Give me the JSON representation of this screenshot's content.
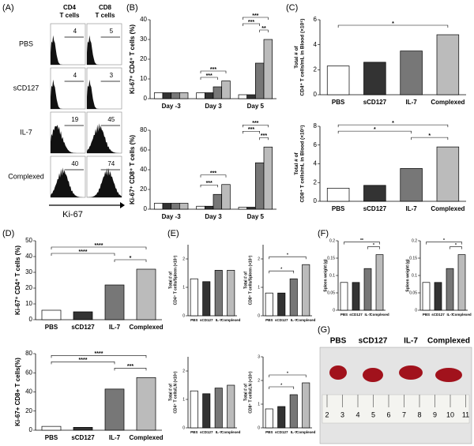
{
  "flow": {
    "panel": "(A)",
    "columns": [
      "CD4",
      "CD8"
    ],
    "column_unit": "T cells",
    "rows": [
      {
        "label": "PBS",
        "values": [
          4,
          5
        ]
      },
      {
        "label": "sCD127",
        "values": [
          4,
          3
        ]
      },
      {
        "label": "IL-7",
        "values": [
          19,
          45
        ]
      },
      {
        "label": "Complexed",
        "values": [
          40,
          74
        ]
      }
    ],
    "xlabel": "Ki-67"
  },
  "chart_data": [
    {
      "type": "bar",
      "panel": "(B)",
      "ylabel": [
        "Ki-67⁺ CD4⁺ T cells (%)"
      ],
      "categories": [
        "Day -3",
        "Day 3",
        "Day 5"
      ],
      "series": [
        {
          "color": "#ffffff",
          "values": [
            3,
            3,
            2
          ]
        },
        {
          "color": "#333333",
          "values": [
            3,
            3,
            2
          ]
        },
        {
          "color": "#777777",
          "values": [
            3,
            6,
            18
          ]
        },
        {
          "color": "#bbbbbb",
          "values": [
            3,
            9,
            30
          ]
        }
      ],
      "ylim": [
        0,
        40
      ],
      "yticks": [
        0,
        10,
        20,
        30,
        40
      ],
      "annotations": [
        {
          "text": "***",
          "category": 1,
          "between": [
            0,
            3
          ]
        },
        {
          "text": "***",
          "category": 1,
          "between": [
            0,
            2
          ]
        },
        {
          "text": "***",
          "category": 2,
          "between": [
            0,
            3
          ]
        },
        {
          "text": "***",
          "category": 2,
          "between": [
            0,
            2
          ]
        },
        {
          "text": "**",
          "category": 2,
          "between": [
            2,
            3
          ]
        }
      ]
    },
    {
      "type": "bar",
      "ylabel": [
        "Ki-67⁺ CD8⁺ T cells (%)"
      ],
      "categories": [
        "Day -3",
        "Day 3",
        "Day 5"
      ],
      "series": [
        {
          "color": "#ffffff",
          "values": [
            6,
            3,
            2
          ]
        },
        {
          "color": "#333333",
          "values": [
            6,
            3,
            2
          ]
        },
        {
          "color": "#777777",
          "values": [
            6,
            15,
            47
          ]
        },
        {
          "color": "#bbbbbb",
          "values": [
            6,
            25,
            63
          ]
        }
      ],
      "ylim": [
        0,
        80
      ],
      "yticks": [
        0,
        20,
        40,
        60,
        80
      ],
      "annotations": [
        {
          "text": "***",
          "category": 1,
          "between": [
            0,
            3
          ]
        },
        {
          "text": "***",
          "category": 1,
          "between": [
            0,
            2
          ]
        },
        {
          "text": "***",
          "category": 2,
          "between": [
            0,
            3
          ]
        },
        {
          "text": "***",
          "category": 2,
          "between": [
            0,
            2
          ]
        },
        {
          "text": "***",
          "category": 2,
          "between": [
            2,
            3
          ]
        }
      ]
    },
    {
      "type": "bar",
      "panel": "(C)",
      "ylabel": [
        "Total # of",
        "CD4⁺ T cells/mL in Blood (×10⁵)"
      ],
      "categories": [
        "PBS",
        "sCD127",
        "IL-7",
        "Complexed"
      ],
      "values": [
        2.3,
        2.6,
        3.5,
        4.8
      ],
      "colors": [
        "#ffffff",
        "#333333",
        "#777777",
        "#bbbbbb"
      ],
      "ylim": [
        0,
        6
      ],
      "yticks": [
        0,
        2,
        4,
        6
      ],
      "annotations": [
        {
          "text": "*",
          "between": [
            0,
            3
          ]
        }
      ]
    },
    {
      "type": "bar",
      "ylabel": [
        "Total # of",
        "CD8⁺ T cells/mL in Blood (×10⁵)"
      ],
      "categories": [
        "PBS",
        "sCD127",
        "IL-7",
        "Complexed"
      ],
      "values": [
        1.4,
        1.7,
        3.5,
        5.8
      ],
      "colors": [
        "#ffffff",
        "#333333",
        "#777777",
        "#bbbbbb"
      ],
      "ylim": [
        0,
        8
      ],
      "yticks": [
        0,
        2,
        4,
        6,
        8
      ],
      "annotations": [
        {
          "text": "*",
          "between": [
            0,
            3
          ]
        },
        {
          "text": "*",
          "between": [
            0,
            2
          ]
        },
        {
          "text": "*",
          "between": [
            2,
            3
          ]
        }
      ]
    },
    {
      "type": "bar",
      "panel": "(D)",
      "ylabel": [
        "Ki-67⁺ CD4⁺ T cells (%)"
      ],
      "categories": [
        "PBS",
        "sCD127",
        "IL-7",
        "Complexed"
      ],
      "values": [
        6,
        5,
        22,
        32
      ],
      "colors": [
        "#ffffff",
        "#333333",
        "#777777",
        "#bbbbbb"
      ],
      "ylim": [
        0,
        50
      ],
      "yticks": [
        0,
        10,
        20,
        30,
        40,
        50
      ],
      "annotations": [
        {
          "text": "****",
          "between": [
            0,
            3
          ]
        },
        {
          "text": "****",
          "between": [
            0,
            2
          ]
        },
        {
          "text": "*",
          "between": [
            2,
            3
          ]
        }
      ]
    },
    {
      "type": "bar",
      "ylabel": [
        "Ki-67+ CD8+ T cells(%)"
      ],
      "categories": [
        "PBS",
        "sCD127",
        "IL-7",
        "Complexed"
      ],
      "values": [
        4,
        3,
        43,
        55
      ],
      "colors": [
        "#ffffff",
        "#333333",
        "#777777",
        "#bbbbbb"
      ],
      "ylim": [
        0,
        80
      ],
      "yticks": [
        0,
        20,
        40,
        60,
        80
      ],
      "annotations": [
        {
          "text": "****",
          "between": [
            0,
            3
          ]
        },
        {
          "text": "****",
          "between": [
            0,
            2
          ]
        },
        {
          "text": "***",
          "between": [
            2,
            3
          ]
        }
      ]
    },
    {
      "type": "bar",
      "panel": "(E)",
      "ylabel": [
        "Total # of",
        "CD4⁺ T cells/Spleen (×10⁷)"
      ],
      "categories": [
        "PBS",
        "sCD127",
        "IL-7",
        "Complexed"
      ],
      "values": [
        1.3,
        1.2,
        1.6,
        1.6
      ],
      "colors": [
        "#ffffff",
        "#333333",
        "#777777",
        "#bbbbbb"
      ],
      "ylim": [
        0,
        2.5
      ],
      "yticks": [
        0,
        1,
        2
      ],
      "annotations": []
    },
    {
      "type": "bar",
      "ylabel": [
        "Total # of",
        "CD8⁺ T cells/Spleen (×10⁷)"
      ],
      "categories": [
        "PBS",
        "sCD127",
        "IL-7",
        "Complexed"
      ],
      "values": [
        0.8,
        0.8,
        1.3,
        1.8
      ],
      "colors": [
        "#ffffff",
        "#333333",
        "#777777",
        "#bbbbbb"
      ],
      "ylim": [
        0,
        2.5
      ],
      "yticks": [
        0,
        1,
        2
      ],
      "annotations": [
        {
          "text": "*",
          "between": [
            0,
            3
          ]
        },
        {
          "text": "*",
          "between": [
            0,
            2
          ]
        }
      ]
    },
    {
      "type": "bar",
      "ylabel": [
        "Total # of",
        "CD4⁺ T cells/LN (×10⁶)"
      ],
      "categories": [
        "PBS",
        "sCD127",
        "IL-7",
        "Complexed"
      ],
      "values": [
        1.3,
        1.2,
        1.4,
        1.5
      ],
      "colors": [
        "#ffffff",
        "#333333",
        "#777777",
        "#bbbbbb"
      ],
      "ylim": [
        0,
        2.5
      ],
      "yticks": [
        0,
        1,
        2
      ],
      "annotations": []
    },
    {
      "type": "bar",
      "ylabel": [
        "Total # of",
        "CD8⁺ T cells/LN (×10⁶)"
      ],
      "categories": [
        "PBS",
        "sCD127",
        "IL-7",
        "Complexed"
      ],
      "values": [
        0.8,
        0.9,
        1.4,
        1.9
      ],
      "colors": [
        "#ffffff",
        "#333333",
        "#777777",
        "#bbbbbb"
      ],
      "ylim": [
        0,
        3
      ],
      "yticks": [
        0,
        1,
        2,
        3
      ],
      "annotations": [
        {
          "text": "*",
          "between": [
            0,
            3
          ]
        },
        {
          "text": "*",
          "between": [
            0,
            2
          ]
        }
      ]
    },
    {
      "type": "bar",
      "panel": "(F)",
      "ylabel": [
        "Spleen weight (g)"
      ],
      "categories": [
        "PBS",
        "sCD127",
        "IL-7",
        "Complexed"
      ],
      "values": [
        0.08,
        0.08,
        0.12,
        0.16
      ],
      "colors": [
        "#ffffff",
        "#333333",
        "#777777",
        "#bbbbbb"
      ],
      "ylim": [
        0,
        0.2
      ],
      "yticks": [
        0,
        0.05,
        0.1,
        0.15,
        0.2
      ],
      "annotations": [
        {
          "text": "**",
          "between": [
            0,
            3
          ]
        },
        {
          "text": "*",
          "between": [
            2,
            3
          ]
        }
      ]
    },
    {
      "type": "bar",
      "ylabel": [
        "Spleen weight (g)"
      ],
      "categories": [
        "PBS",
        "sCD127",
        "IL-7",
        "Complexed"
      ],
      "values": [
        0.08,
        0.08,
        0.12,
        0.16
      ],
      "colors": [
        "#ffffff",
        "#333333",
        "#777777",
        "#bbbbbb"
      ],
      "ylim": [
        0,
        0.2
      ],
      "yticks": [
        0,
        0.05,
        0.1,
        0.15,
        0.2
      ],
      "annotations": [
        {
          "text": "*",
          "between": [
            0,
            3
          ]
        },
        {
          "text": "*",
          "between": [
            2,
            3
          ]
        }
      ]
    }
  ],
  "photo": {
    "panel": "(G)",
    "labels": [
      "PBS",
      "sCD127",
      "IL-7",
      "Complexed"
    ],
    "ruler": [
      2,
      3,
      4,
      5,
      6,
      7,
      8,
      9,
      10,
      11
    ]
  }
}
